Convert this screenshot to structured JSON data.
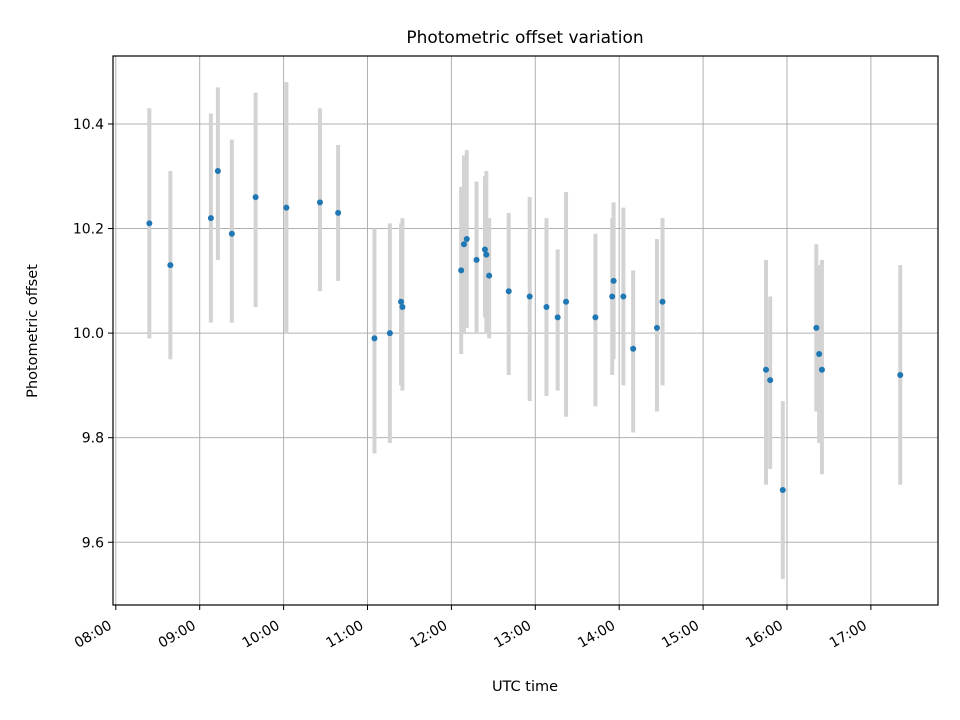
{
  "chart_data": {
    "type": "scatter",
    "title": "Photometric offset variation",
    "xlabel": "UTC time",
    "ylabel": "Photometric offset",
    "x_ticks": [
      "08:00",
      "09:00",
      "10:00",
      "11:00",
      "12:00",
      "13:00",
      "14:00",
      "15:00",
      "16:00",
      "17:00"
    ],
    "y_ticks": [
      "9.6",
      "9.8",
      "10.0",
      "10.2",
      "10.4"
    ],
    "xlim": [
      "07:58",
      "17:48"
    ],
    "ylim": [
      9.48,
      10.53
    ],
    "grid": true,
    "marker_color": "#1f77b4",
    "errorbar_color": "#d3d3d3",
    "points": [
      {
        "t": "08:24",
        "y": 10.21,
        "lo": 9.99,
        "hi": 10.43
      },
      {
        "t": "08:39",
        "y": 10.13,
        "lo": 9.95,
        "hi": 10.31
      },
      {
        "t": "09:08",
        "y": 10.22,
        "lo": 10.02,
        "hi": 10.42
      },
      {
        "t": "09:13",
        "y": 10.31,
        "lo": 10.14,
        "hi": 10.47
      },
      {
        "t": "09:23",
        "y": 10.19,
        "lo": 10.02,
        "hi": 10.37
      },
      {
        "t": "09:40",
        "y": 10.26,
        "lo": 10.05,
        "hi": 10.46
      },
      {
        "t": "10:02",
        "y": 10.24,
        "lo": 10.0,
        "hi": 10.48
      },
      {
        "t": "10:26",
        "y": 10.25,
        "lo": 10.08,
        "hi": 10.43
      },
      {
        "t": "10:39",
        "y": 10.23,
        "lo": 10.1,
        "hi": 10.36
      },
      {
        "t": "11:05",
        "y": 9.99,
        "lo": 9.77,
        "hi": 10.2
      },
      {
        "t": "11:16",
        "y": 10.0,
        "lo": 9.79,
        "hi": 10.21
      },
      {
        "t": "11:24",
        "y": 10.06,
        "lo": 9.9,
        "hi": 10.21
      },
      {
        "t": "11:25",
        "y": 10.05,
        "lo": 9.89,
        "hi": 10.22
      },
      {
        "t": "12:07",
        "y": 10.12,
        "lo": 9.96,
        "hi": 10.28
      },
      {
        "t": "12:09",
        "y": 10.17,
        "lo": 10.0,
        "hi": 10.34
      },
      {
        "t": "12:11",
        "y": 10.18,
        "lo": 10.01,
        "hi": 10.35
      },
      {
        "t": "12:18",
        "y": 10.14,
        "lo": 10.0,
        "hi": 10.29
      },
      {
        "t": "12:24",
        "y": 10.16,
        "lo": 10.03,
        "hi": 10.3
      },
      {
        "t": "12:25",
        "y": 10.15,
        "lo": 10.0,
        "hi": 10.31
      },
      {
        "t": "12:27",
        "y": 10.11,
        "lo": 9.99,
        "hi": 10.22
      },
      {
        "t": "12:41",
        "y": 10.08,
        "lo": 9.92,
        "hi": 10.23
      },
      {
        "t": "12:56",
        "y": 10.07,
        "lo": 9.87,
        "hi": 10.26
      },
      {
        "t": "13:08",
        "y": 10.05,
        "lo": 9.88,
        "hi": 10.22
      },
      {
        "t": "13:16",
        "y": 10.03,
        "lo": 9.89,
        "hi": 10.16
      },
      {
        "t": "13:22",
        "y": 10.06,
        "lo": 9.84,
        "hi": 10.27
      },
      {
        "t": "13:43",
        "y": 10.03,
        "lo": 9.86,
        "hi": 10.19
      },
      {
        "t": "13:55",
        "y": 10.07,
        "lo": 9.92,
        "hi": 10.22
      },
      {
        "t": "13:56",
        "y": 10.1,
        "lo": 9.95,
        "hi": 10.25
      },
      {
        "t": "14:03",
        "y": 10.07,
        "lo": 9.9,
        "hi": 10.24
      },
      {
        "t": "14:10",
        "y": 9.97,
        "lo": 9.81,
        "hi": 10.12
      },
      {
        "t": "14:27",
        "y": 10.01,
        "lo": 9.85,
        "hi": 10.18
      },
      {
        "t": "14:31",
        "y": 10.06,
        "lo": 9.9,
        "hi": 10.22
      },
      {
        "t": "15:45",
        "y": 9.93,
        "lo": 9.71,
        "hi": 10.14
      },
      {
        "t": "15:48",
        "y": 9.91,
        "lo": 9.74,
        "hi": 10.07
      },
      {
        "t": "15:57",
        "y": 9.7,
        "lo": 9.53,
        "hi": 9.87
      },
      {
        "t": "16:21",
        "y": 10.01,
        "lo": 9.85,
        "hi": 10.17
      },
      {
        "t": "16:23",
        "y": 9.96,
        "lo": 9.79,
        "hi": 10.13
      },
      {
        "t": "16:25",
        "y": 9.93,
        "lo": 9.73,
        "hi": 10.14
      },
      {
        "t": "17:21",
        "y": 9.92,
        "lo": 9.71,
        "hi": 10.13
      }
    ]
  }
}
